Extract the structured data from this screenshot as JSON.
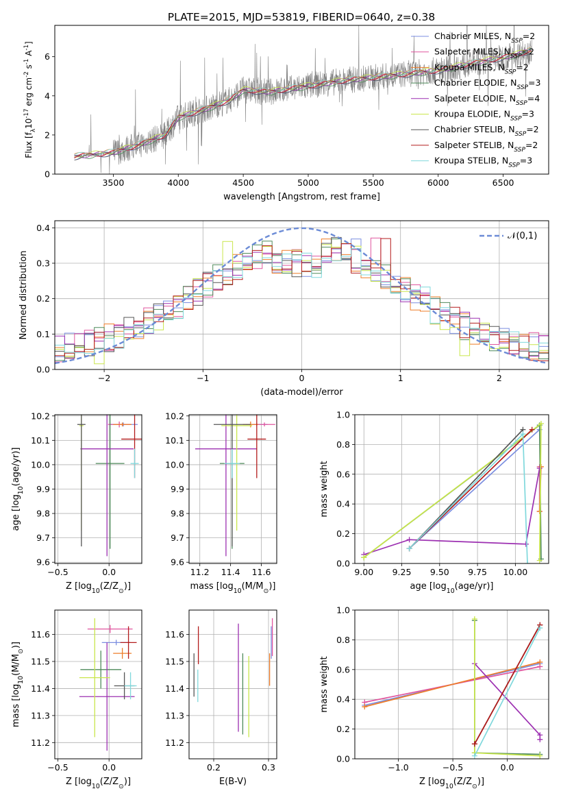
{
  "figure": {
    "title": "PLATE=2015, MJD=53819, FIBERID=0640, z=0.38"
  },
  "palette": {
    "chabrier_miles": "#7b8ee0",
    "salpeter_miles": "#e0559e",
    "kroupa_miles": "#ee7d28",
    "chabrier_elodie": "#4e8a5a",
    "salpeter_elodie": "#9c2fb1",
    "kroupa_elodie": "#c9e64b",
    "chabrier_stelib": "#555555",
    "salpeter_stelib": "#b31b1b",
    "kroupa_stelib": "#7fd8dc",
    "spectrum_data": "#7f7f7f",
    "normal_curve": "#6b8bd6",
    "grid": "#b0b0b0"
  },
  "chart_data": [
    {
      "id": "spectrum",
      "type": "line",
      "title": "PLATE=2015, MJD=53819, FIBERID=0640, z=0.38",
      "xlabel": "wavelength [Angstrom, rest frame]",
      "ylabel": "Flux [f$_\\lambda$10$^{-17}$ erg cm$^{-2}$ s$^{-1}$ A$^{-1}$]",
      "xlim": [
        3050,
        6850
      ],
      "ylim": [
        0,
        7.6
      ],
      "xticks": [
        "3500",
        "4000",
        "4500",
        "5000",
        "5500",
        "6000",
        "6500"
      ],
      "yticks": [
        "0",
        "2",
        "4",
        "6"
      ],
      "grid": false,
      "legend_position": "top-right",
      "legend": [
        "Chabrier MILES, N$_{SSP}$=2",
        "Salpeter MILES, N$_{SSP}$=2",
        "Kroupa MILES, N$_{SSP}$=2",
        "Chabrier ELODIE, N$_{SSP}$=3",
        "Salpeter ELODIE, N$_{SSP}$=4",
        "Kroupa ELODIE, N$_{SSP}$=3",
        "Chabrier STELIB, N$_{SSP}$=2",
        "Salpeter STELIB, N$_{SSP}$=2",
        "Kroupa STELIB, N$_{SSP}$=3"
      ],
      "continuum": {
        "x": [
          3200,
          3500,
          3700,
          3900,
          4000,
          4200,
          4400,
          4500,
          4700,
          5000,
          5300,
          5600,
          6000,
          6300,
          6600,
          6700
        ],
        "y": [
          0.9,
          1.1,
          1.5,
          2.0,
          2.9,
          3.3,
          3.8,
          4.3,
          4.2,
          4.5,
          4.8,
          5.0,
          5.3,
          5.7,
          6.1,
          6.3
        ]
      }
    },
    {
      "id": "residuals",
      "type": "line",
      "xlabel": "(data-model)/error",
      "ylabel": "Normed distribution",
      "xlim": [
        -2.5,
        2.5
      ],
      "ylim": [
        0,
        0.42
      ],
      "xticks": [
        "−2",
        "−1",
        "0",
        "1",
        "2"
      ],
      "yticks": [
        "0.0",
        "0.1",
        "0.2",
        "0.3",
        "0.4"
      ],
      "grid": true,
      "legend_position": "top-right",
      "legend": [
        "$\\mathcal{N}(0,1)$"
      ]
    },
    {
      "id": "age_vs_Z",
      "type": "scatter",
      "xlabel": "Z [log$_{10}$(Z/Z$_\\odot$)]",
      "ylabel": "age [log$_{10}$(age/yr)]",
      "xlim": [
        -0.53,
        0.32
      ],
      "ylim": [
        9.595,
        10.205
      ],
      "xticks": [
        "−0.5",
        "0.0"
      ],
      "yticks": [
        "9.6",
        "9.7",
        "9.8",
        "9.9",
        "10.0",
        "10.1",
        "10.2"
      ],
      "grid": true,
      "points": [
        {
          "s": "chabrier_miles",
          "x": 0.14,
          "y": 10.165,
          "xerr": 0.14,
          "yerr": 0.008
        },
        {
          "s": "salpeter_miles",
          "x": 0.1,
          "y": 10.165,
          "xerr": 0.11,
          "yerr": 0.012
        },
        {
          "s": "kroupa_miles",
          "x": 0.13,
          "y": 10.165,
          "xerr": 0.09,
          "yerr": 0.008
        },
        {
          "s": "chabrier_elodie",
          "x": 0.01,
          "y": 10.005,
          "xerr": 0.14,
          "yerr": 0.35
        },
        {
          "s": "salpeter_elodie",
          "x": -0.02,
          "y": 10.065,
          "xerr": 0.26,
          "yerr": 0.44
        },
        {
          "s": "kroupa_elodie",
          "x": -0.27,
          "y": 10.16,
          "xerr": 0.02,
          "yerr": 0.43
        },
        {
          "s": "chabrier_stelib",
          "x": -0.27,
          "y": 10.165,
          "xerr": 0.04,
          "yerr": 0.5
        },
        {
          "s": "salpeter_stelib",
          "x": 0.25,
          "y": 10.105,
          "xerr": 0.13,
          "yerr": 0.16
        },
        {
          "s": "kroupa_stelib",
          "x": 0.25,
          "y": 10.005,
          "xerr": 0.04,
          "yerr": 0.06
        }
      ]
    },
    {
      "id": "age_vs_mass",
      "type": "scatter",
      "xlabel": "mass [log$_{10}$(M/M$_\\odot$)]",
      "ylabel": "",
      "xlim": [
        11.13,
        11.7
      ],
      "ylim": [
        9.595,
        10.205
      ],
      "xticks": [
        "11.2",
        "11.4",
        "11.6"
      ],
      "yticks": [
        "9.6",
        "9.7",
        "9.8",
        "9.9",
        "10.0",
        "10.1",
        "10.2"
      ],
      "grid": true,
      "points": [
        {
          "s": "chabrier_miles",
          "x": 11.57,
          "y": 10.165,
          "xerr": 0.07,
          "yerr": 0.008
        },
        {
          "s": "salpeter_miles",
          "x": 11.62,
          "y": 10.165,
          "xerr": 0.07,
          "yerr": 0.008
        },
        {
          "s": "kroupa_miles",
          "x": 11.53,
          "y": 10.165,
          "xerr": 0.05,
          "yerr": 0.012
        },
        {
          "s": "chabrier_elodie",
          "x": 11.41,
          "y": 10.005,
          "xerr": 0.08,
          "yerr": 0.35
        },
        {
          "s": "salpeter_elodie",
          "x": 11.37,
          "y": 10.065,
          "xerr": 0.2,
          "yerr": 0.44
        },
        {
          "s": "kroupa_elodie",
          "x": 11.44,
          "y": 10.16,
          "xerr": 0.1,
          "yerr": 0.43
        },
        {
          "s": "chabrier_stelib",
          "x": 11.41,
          "y": 10.165,
          "xerr": 0.12,
          "yerr": 0.5
        },
        {
          "s": "salpeter_stelib",
          "x": 11.57,
          "y": 10.105,
          "xerr": 0.06,
          "yerr": 0.16
        },
        {
          "s": "kroupa_stelib",
          "x": 11.41,
          "y": 10.005,
          "xerr": 0.05,
          "yerr": 0.06
        }
      ]
    },
    {
      "id": "weight_vs_age",
      "type": "line",
      "xlabel": "age [log$_{10}$(age/yr)]",
      "ylabel": "mass weight",
      "xlim": [
        8.94,
        10.22
      ],
      "ylim": [
        0,
        1
      ],
      "xticks": [
        "9.00",
        "9.25",
        "9.50",
        "9.75",
        "10.00"
      ],
      "yticks": [
        "0.0",
        "0.2",
        "0.4",
        "0.6",
        "0.8",
        "1.0"
      ],
      "grid": true,
      "series": [
        {
          "s": "chabrier_miles",
          "x": [
            9.3,
            10.16
          ],
          "y": [
            0.1,
            0.9
          ]
        },
        {
          "s": "salpeter_miles",
          "x": [
            10.16,
            10.16
          ],
          "y": [
            0.35,
            0.65
          ]
        },
        {
          "s": "kroupa_miles",
          "x": [
            10.16,
            10.17
          ],
          "y": [
            0.35,
            0.65
          ]
        },
        {
          "s": "chabrier_elodie",
          "x": [
            9.0,
            10.16,
            10.17
          ],
          "y": [
            0.04,
            0.93,
            0.03
          ]
        },
        {
          "s": "salpeter_elodie",
          "x": [
            9.0,
            9.3,
            10.07,
            10.16
          ],
          "y": [
            0.06,
            0.16,
            0.13,
            0.64
          ]
        },
        {
          "s": "kroupa_elodie",
          "x": [
            9.0,
            10.17,
            10.16
          ],
          "y": [
            0.04,
            0.94,
            0.02
          ]
        },
        {
          "s": "chabrier_stelib",
          "x": [
            9.3,
            10.05
          ],
          "y": [
            0.1,
            0.9
          ]
        },
        {
          "s": "salpeter_stelib",
          "x": [
            9.3,
            10.11
          ],
          "y": [
            0.1,
            0.9
          ]
        },
        {
          "s": "kroupa_stelib",
          "x": [
            9.3,
            10.05,
            10.08
          ],
          "y": [
            0.1,
            0.87,
            0.0
          ]
        }
      ]
    },
    {
      "id": "mass_vs_Z",
      "type": "scatter",
      "xlabel": "Z [log$_{10}$(Z/Z$_\\odot$)]",
      "ylabel": "mass [log$_{10}$(M/M$_\\odot$)]",
      "xlim": [
        -0.53,
        0.32
      ],
      "ylim": [
        11.14,
        11.69
      ],
      "xticks": [
        "−0.5",
        "0.0"
      ],
      "yticks": [
        "11.2",
        "11.3",
        "11.4",
        "11.5",
        "11.6"
      ],
      "grid": true,
      "points": [
        {
          "s": "chabrier_miles",
          "x": 0.07,
          "y": 11.57,
          "xerr": 0.14,
          "yerr": 0.01
        },
        {
          "s": "salpeter_miles",
          "x": 0.01,
          "y": 11.62,
          "xerr": 0.22,
          "yerr": 0.015
        },
        {
          "s": "kroupa_miles",
          "x": 0.13,
          "y": 11.53,
          "xerr": 0.09,
          "yerr": 0.02
        },
        {
          "s": "chabrier_elodie",
          "x": -0.08,
          "y": 11.47,
          "xerr": 0.2,
          "yerr": 0.07
        },
        {
          "s": "salpeter_elodie",
          "x": -0.02,
          "y": 11.37,
          "xerr": 0.27,
          "yerr": 0.2
        },
        {
          "s": "kroupa_elodie",
          "x": -0.14,
          "y": 11.44,
          "xerr": 0.15,
          "yerr": 0.22
        },
        {
          "s": "chabrier_stelib",
          "x": 0.15,
          "y": 11.41,
          "xerr": 0.1,
          "yerr": 0.05
        },
        {
          "s": "salpeter_stelib",
          "x": 0.19,
          "y": 11.57,
          "xerr": 0.08,
          "yerr": 0.06
        },
        {
          "s": "kroupa_stelib",
          "x": 0.21,
          "y": 11.41,
          "xerr": 0.06,
          "yerr": 0.05
        }
      ]
    },
    {
      "id": "mass_vs_ebv",
      "type": "scatter",
      "xlabel": "E(B-V)",
      "ylabel": "",
      "xlim": [
        0.155,
        0.315
      ],
      "ylim": [
        11.14,
        11.69
      ],
      "xticks": [
        "0.2",
        "0.3"
      ],
      "yticks": [
        "11.2",
        "11.3",
        "11.4",
        "11.5",
        "11.6"
      ],
      "grid": true,
      "points": [
        {
          "s": "chabrier_miles",
          "x": 0.305,
          "y": 11.57,
          "yerr": 0.06
        },
        {
          "s": "salpeter_miles",
          "x": 0.307,
          "y": 11.59,
          "yerr": 0.07
        },
        {
          "s": "kroupa_miles",
          "x": 0.302,
          "y": 11.47,
          "yerr": 0.06
        },
        {
          "s": "chabrier_elodie",
          "x": 0.253,
          "y": 11.38,
          "yerr": 0.15
        },
        {
          "s": "salpeter_elodie",
          "x": 0.245,
          "y": 11.44,
          "yerr": 0.2
        },
        {
          "s": "kroupa_elodie",
          "x": 0.264,
          "y": 11.37,
          "yerr": 0.15
        },
        {
          "s": "chabrier_stelib",
          "x": 0.164,
          "y": 11.45,
          "yerr": 0.08
        },
        {
          "s": "salpeter_stelib",
          "x": 0.172,
          "y": 11.56,
          "yerr": 0.07
        },
        {
          "s": "kroupa_stelib",
          "x": 0.171,
          "y": 11.41,
          "yerr": 0.06
        }
      ]
    },
    {
      "id": "weight_vs_Z",
      "type": "line",
      "xlabel": "Z [log$_{10}$(Z/Z$_\\odot$)]",
      "ylabel": "mass weight",
      "xlim": [
        -1.4,
        0.38
      ],
      "ylim": [
        0,
        1
      ],
      "xticks": [
        "−1.0",
        "−0.5",
        "0.0"
      ],
      "yticks": [
        "0.0",
        "0.2",
        "0.4",
        "0.6",
        "0.8",
        "1.0"
      ],
      "grid": true,
      "series": [
        {
          "s": "chabrier_miles",
          "x": [
            -1.31,
            0.3
          ],
          "y": [
            0.36,
            0.64
          ]
        },
        {
          "s": "salpeter_miles",
          "x": [
            -1.31,
            0.3
          ],
          "y": [
            0.38,
            0.62
          ]
        },
        {
          "s": "kroupa_miles",
          "x": [
            -1.31,
            0.3
          ],
          "y": [
            0.35,
            0.65
          ]
        },
        {
          "s": "chabrier_elodie",
          "x": [
            -0.3,
            -0.3,
            0.3
          ],
          "y": [
            0.93,
            0.04,
            0.03
          ]
        },
        {
          "s": "salpeter_elodie",
          "x": [
            -0.3,
            0.3,
            0.3
          ],
          "y": [
            0.64,
            0.16,
            0.13
          ]
        },
        {
          "s": "kroupa_elodie",
          "x": [
            -0.3,
            -0.3,
            0.3
          ],
          "y": [
            0.94,
            0.04,
            0.02
          ]
        },
        {
          "s": "chabrier_stelib",
          "x": [
            -0.3,
            0.3
          ],
          "y": [
            0.1,
            0.9
          ]
        },
        {
          "s": "salpeter_stelib",
          "x": [
            -0.3,
            0.3
          ],
          "y": [
            0.1,
            0.9
          ]
        },
        {
          "s": "kroupa_stelib",
          "x": [
            -0.3,
            0.3
          ],
          "y": [
            0.02,
            0.88
          ]
        }
      ]
    }
  ]
}
